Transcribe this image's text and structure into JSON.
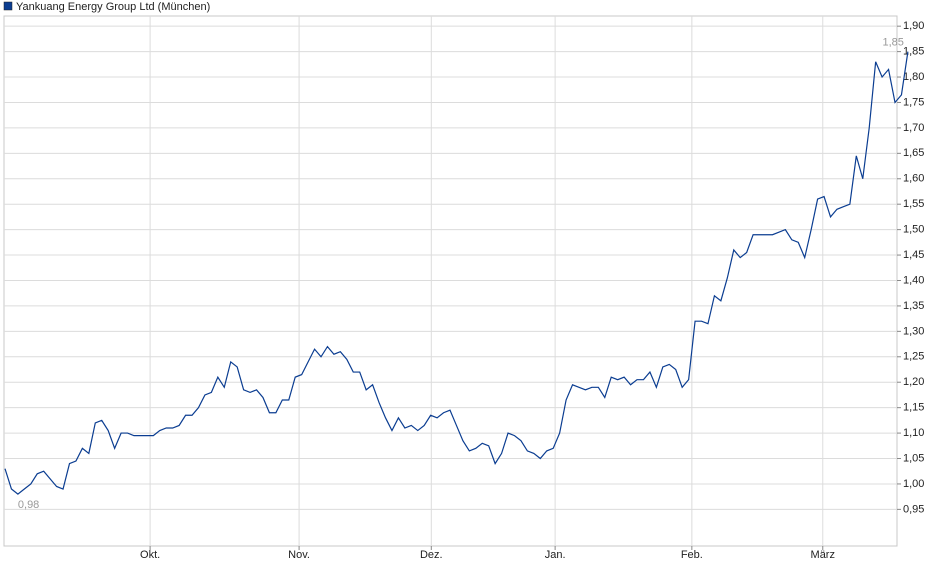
{
  "chart_data": {
    "type": "line",
    "series": [
      {
        "name": "Yankuang Energy Group Ltd (München)",
        "color": "#0b3d91",
        "values": [
          1.03,
          0.99,
          0.98,
          0.99,
          1.0,
          1.02,
          1.025,
          1.01,
          0.995,
          0.99,
          1.04,
          1.045,
          1.07,
          1.06,
          1.12,
          1.125,
          1.105,
          1.07,
          1.1,
          1.1,
          1.095,
          1.095,
          1.095,
          1.095,
          1.105,
          1.11,
          1.11,
          1.115,
          1.135,
          1.135,
          1.15,
          1.175,
          1.18,
          1.21,
          1.19,
          1.24,
          1.23,
          1.185,
          1.18,
          1.185,
          1.17,
          1.14,
          1.14,
          1.165,
          1.165,
          1.21,
          1.215,
          1.24,
          1.265,
          1.25,
          1.27,
          1.255,
          1.26,
          1.245,
          1.22,
          1.22,
          1.185,
          1.195,
          1.16,
          1.13,
          1.105,
          1.13,
          1.11,
          1.115,
          1.105,
          1.115,
          1.135,
          1.13,
          1.14,
          1.145,
          1.115,
          1.085,
          1.065,
          1.07,
          1.08,
          1.075,
          1.04,
          1.06,
          1.1,
          1.095,
          1.085,
          1.065,
          1.06,
          1.05,
          1.065,
          1.07,
          1.1,
          1.165,
          1.195,
          1.19,
          1.185,
          1.19,
          1.19,
          1.17,
          1.21,
          1.205,
          1.21,
          1.195,
          1.205,
          1.205,
          1.22,
          1.19,
          1.23,
          1.235,
          1.225,
          1.19,
          1.205,
          1.32,
          1.32,
          1.315,
          1.37,
          1.36,
          1.405,
          1.46,
          1.445,
          1.455,
          1.49,
          1.49,
          1.49,
          1.49,
          1.495,
          1.5,
          1.48,
          1.475,
          1.445,
          1.5,
          1.56,
          1.565,
          1.525,
          1.54,
          1.545,
          1.55,
          1.645,
          1.6,
          1.7,
          1.83,
          1.8,
          1.815,
          1.75,
          1.765,
          1.85
        ],
        "value_labels": [
          null,
          null,
          "0,98",
          null,
          null,
          null,
          null,
          null,
          null,
          null,
          null,
          null,
          null,
          null,
          null,
          null,
          null,
          null,
          null,
          null,
          null,
          null,
          null,
          null,
          null,
          null,
          null,
          null,
          null,
          null,
          null,
          null,
          null,
          null,
          null,
          null,
          null,
          null,
          null,
          null,
          null,
          null,
          null,
          null,
          null,
          null,
          null,
          null,
          null,
          null,
          null,
          null,
          null,
          null,
          null,
          null,
          null,
          null,
          null,
          null,
          null,
          null,
          null,
          null,
          null,
          null,
          null,
          null,
          null,
          null,
          null,
          null,
          null,
          null,
          null,
          null,
          null,
          null,
          null,
          null,
          null,
          null,
          null,
          null,
          null,
          null,
          null,
          null,
          null,
          null,
          null,
          null,
          null,
          null,
          null,
          null,
          null,
          null,
          null,
          null,
          null,
          null,
          null,
          null,
          null,
          null,
          null,
          null,
          null,
          null,
          null,
          null,
          null,
          null,
          null,
          null,
          null,
          null,
          null,
          null,
          null,
          null,
          null,
          null,
          null,
          null,
          null,
          null,
          null,
          null,
          null,
          null,
          null,
          null,
          null,
          null,
          null,
          null,
          null,
          null,
          "1,85"
        ]
      }
    ],
    "xlim": [
      0,
      138
    ],
    "xticks": [
      {
        "value": 22.5,
        "label": "Okt."
      },
      {
        "value": 45.6,
        "label": "Nov."
      },
      {
        "value": 66.1,
        "label": "Dez."
      },
      {
        "value": 85.3,
        "label": "Jan."
      },
      {
        "value": 106.5,
        "label": "Feb."
      },
      {
        "value": 126.8,
        "label": "März"
      }
    ],
    "ylim": [
      0.878,
      1.92
    ],
    "yticks": [
      {
        "value": 0.95,
        "label": "0,95"
      },
      {
        "value": 1.0,
        "label": "1,00"
      },
      {
        "value": 1.05,
        "label": "1,05"
      },
      {
        "value": 1.1,
        "label": "1,10"
      },
      {
        "value": 1.15,
        "label": "1,15"
      },
      {
        "value": 1.2,
        "label": "1,20"
      },
      {
        "value": 1.25,
        "label": "1,25"
      },
      {
        "value": 1.3,
        "label": "1,30"
      },
      {
        "value": 1.35,
        "label": "1,35"
      },
      {
        "value": 1.4,
        "label": "1,40"
      },
      {
        "value": 1.45,
        "label": "1,45"
      },
      {
        "value": 1.5,
        "label": "1,50"
      },
      {
        "value": 1.55,
        "label": "1,55"
      },
      {
        "value": 1.6,
        "label": "1,60"
      },
      {
        "value": 1.65,
        "label": "1,65"
      },
      {
        "value": 1.7,
        "label": "1,70"
      },
      {
        "value": 1.75,
        "label": "1,75"
      },
      {
        "value": 1.8,
        "label": "1,80"
      },
      {
        "value": 1.85,
        "label": "1,85"
      },
      {
        "value": 1.9,
        "label": "1,90"
      }
    ],
    "grid": true
  }
}
